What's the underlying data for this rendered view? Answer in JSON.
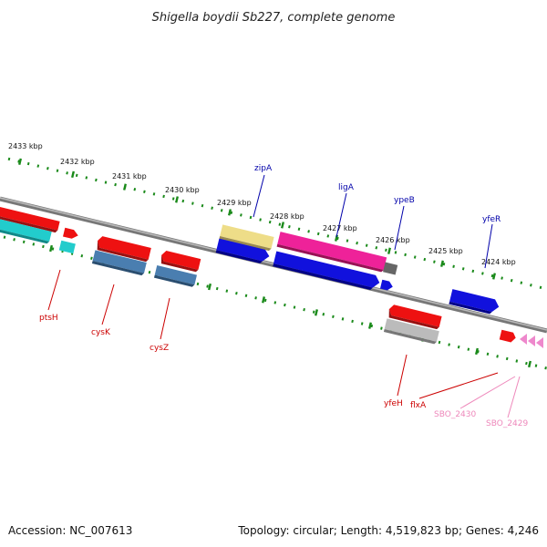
{
  "title": "Shigella boydii Sb227, complete genome",
  "footer": {
    "accession": "Accession: NC_007613",
    "summary": "Topology: circular; Length: 4,519,823 bp; Genes: 4,246"
  },
  "scale_labels": [
    "2433 kbp",
    "2432 kbp",
    "2431 kbp",
    "2430 kbp",
    "2429 kbp",
    "2428 kbp",
    "2427 kbp",
    "2426 kbp",
    "2425 kbp",
    "2424 kbp"
  ],
  "gene_labels": {
    "ptsH": "ptsH",
    "cysK": "cysK",
    "cysZ": "cysZ",
    "zipA": "zipA",
    "ligA": "ligA",
    "ypeB": "ypeB",
    "yfeR": "yfeR",
    "yfeH": "yfeH",
    "flxA": "flxA",
    "SBO_2430": "SBO_2430",
    "SBO_2429": "SBO_2429"
  },
  "colors": {
    "backbone": "#888888",
    "tick": "#1a8a1a",
    "red": "#ee1111",
    "cyan": "#22cccc",
    "steel": "#4a7eb0",
    "yellow": "#eedd88",
    "blue": "#1111dd",
    "magenta": "#ee2299",
    "gray": "#bbbbbb",
    "pink": "#ee88cc",
    "label_red": "#cc0000",
    "label_blue": "#0000aa",
    "label_pink": "#ee88bb"
  }
}
